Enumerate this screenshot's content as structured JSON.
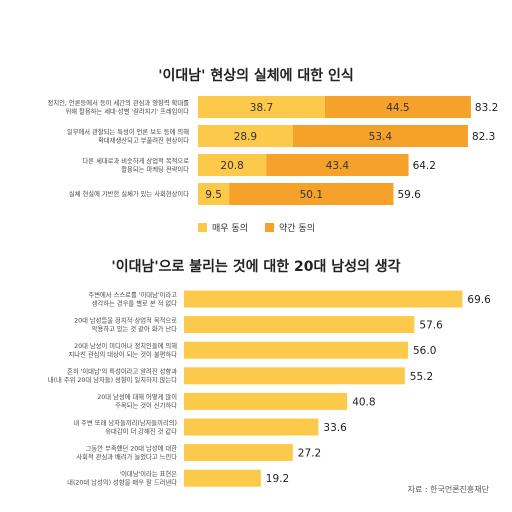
{
  "colors": {
    "strong": "#FCC94B",
    "mild": "#F6A12A",
    "single": "#FCC94B",
    "label_text": "#444444",
    "title_text": "#222222"
  },
  "chart_data": [
    {
      "type": "bar",
      "orientation": "horizontal",
      "stacked": true,
      "title": "'이대남' 현상의 실체에 대한 인식",
      "categories": [
        [
          "정치인, 언론등에서 등이 세간의 관심과 영향력 확대를",
          "위해 활용하는 세대·성별 '갈라치기' 프레임이다"
        ],
        [
          "일부에서 관찰되는 특성이 언론 보도 등에 의해",
          "확대재생산되고 부풀려진 현상이다"
        ],
        [
          "다른 세대로과 비슷하게 상업적 목적으로",
          "활용되는 마케팅 전략이다"
        ],
        [
          "실체 현실에 기반한 실체가 있는 사회현상이다"
        ]
      ],
      "series": [
        {
          "name": "매우 동의",
          "values": [
            38.7,
            28.9,
            20.8,
            9.5
          ]
        },
        {
          "name": "약간 동의",
          "values": [
            44.5,
            53.4,
            43.4,
            50.1
          ]
        }
      ],
      "totals": [
        83.2,
        82.3,
        64.2,
        59.6
      ],
      "value_labels": [
        [
          "38.7",
          "44.5"
        ],
        [
          "28.9",
          "53.4"
        ],
        [
          "20.8",
          "43.4"
        ],
        [
          "9.5",
          "50.1"
        ]
      ],
      "total_labels": [
        "83.2",
        "82.3",
        "64.2",
        "59.6"
      ],
      "xlim": [
        0,
        90
      ],
      "legend": {
        "placement": "bottom-center",
        "items": [
          "매우 동의",
          "약간 동의"
        ]
      },
      "grid": false
    },
    {
      "type": "bar",
      "orientation": "horizontal",
      "title": "'이대남'으로 불리는 것에 대한 20대 남성의 생각",
      "categories": [
        [
          "주변에서 스스로를 '이대남'이라고",
          "생각하는 경우를 별로 본 적 없다"
        ],
        [
          "20대 남성들을 정치적·상업적 목적으로",
          "악용하고 있는 것 같아 화가 난다"
        ],
        [
          "20대 남성이 미디어나 정치인들에 의해",
          "지나친 관심의 대상이 되는 것이 불편하다"
        ],
        [
          "흔히 '이대남'의 특성이라고 알려진 성향과",
          "내(내 주위 20대 남자들) 성향이 일치하지 않는다"
        ],
        [
          "20대 남성에 대해 어떻게 많이",
          "주목되는 것이 신기하다"
        ],
        [
          "내 주변 또래 남자들끼리(남자들끼리의)",
          "유대감이 더 강해진 것 같다"
        ],
        [
          "그동안 부족했던 20대 남성에 대한",
          "사회적 관심과 배려가 늘었다고 느낀다"
        ],
        [
          "'이대남'이라는 표현은",
          "내(20대 남성의) 성향을 매우 잘 드러낸다"
        ]
      ],
      "values": [
        69.6,
        57.6,
        56.0,
        55.2,
        40.8,
        33.6,
        27.2,
        19.2
      ],
      "value_labels": [
        "69.6",
        "57.6",
        "56.0",
        "55.2",
        "40.8",
        "33.6",
        "27.2",
        "19.2"
      ],
      "xlim": [
        0,
        80
      ],
      "grid": false
    }
  ],
  "source": "자료 : 한국언론진흥재단"
}
